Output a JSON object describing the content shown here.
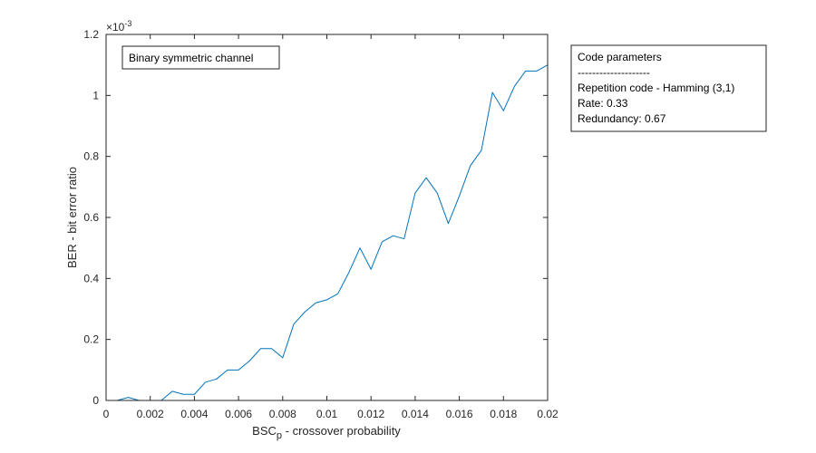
{
  "chart_data": {
    "type": "line",
    "title": "",
    "xlabel": {
      "main": "BSC",
      "sub": "p",
      "rest": " -  crossover probability"
    },
    "ylabel": "BER - bit error ratio",
    "y_exponent_label": "×10",
    "y_exponent_power": "-3",
    "xlim": [
      0,
      0.02
    ],
    "ylim": [
      0,
      1.2
    ],
    "x_ticks": [
      0,
      0.002,
      0.004,
      0.006,
      0.008,
      0.01,
      0.012,
      0.014,
      0.016,
      0.018,
      0.02
    ],
    "x_tick_labels": [
      "0",
      "0.002",
      "0.004",
      "0.006",
      "0.008",
      "0.01",
      "0.012",
      "0.014",
      "0.016",
      "0.018",
      "0.02"
    ],
    "y_ticks": [
      0,
      0.2,
      0.4,
      0.6,
      0.8,
      1.0,
      1.2
    ],
    "y_tick_labels": [
      "0",
      "0.2",
      "0.4",
      "0.6",
      "0.8",
      "1",
      "1.2"
    ],
    "grid": false,
    "series": [
      {
        "color": "#0072BD",
        "x": [
          0,
          0.0005,
          0.001,
          0.0015,
          0.002,
          0.0025,
          0.003,
          0.0035,
          0.004,
          0.0045,
          0.005,
          0.0055,
          0.006,
          0.0065,
          0.007,
          0.0075,
          0.008,
          0.0085,
          0.009,
          0.0095,
          0.01,
          0.0105,
          0.011,
          0.0115,
          0.012,
          0.0125,
          0.013,
          0.0135,
          0.014,
          0.0145,
          0.015,
          0.0155,
          0.016,
          0.0165,
          0.017,
          0.0175,
          0.018,
          0.0185,
          0.019,
          0.0195,
          0.02
        ],
        "y": [
          0,
          0,
          0.01,
          0,
          0,
          0,
          0.03,
          0.02,
          0.02,
          0.06,
          0.07,
          0.1,
          0.1,
          0.13,
          0.17,
          0.17,
          0.14,
          0.25,
          0.29,
          0.32,
          0.33,
          0.35,
          0.42,
          0.5,
          0.43,
          0.52,
          0.54,
          0.53,
          0.68,
          0.73,
          0.68,
          0.58,
          0.67,
          0.77,
          0.82,
          1.01,
          0.95,
          1.03,
          1.08,
          1.08,
          1.1
        ]
      }
    ],
    "annotations": {
      "channel_label": "Binary symmetric channel",
      "code_parameters": [
        "Code parameters",
        "--------------------",
        "Repetition code - Hamming (3,1)",
        "Rate: 0.33",
        "Redundancy: 0.67"
      ]
    }
  }
}
